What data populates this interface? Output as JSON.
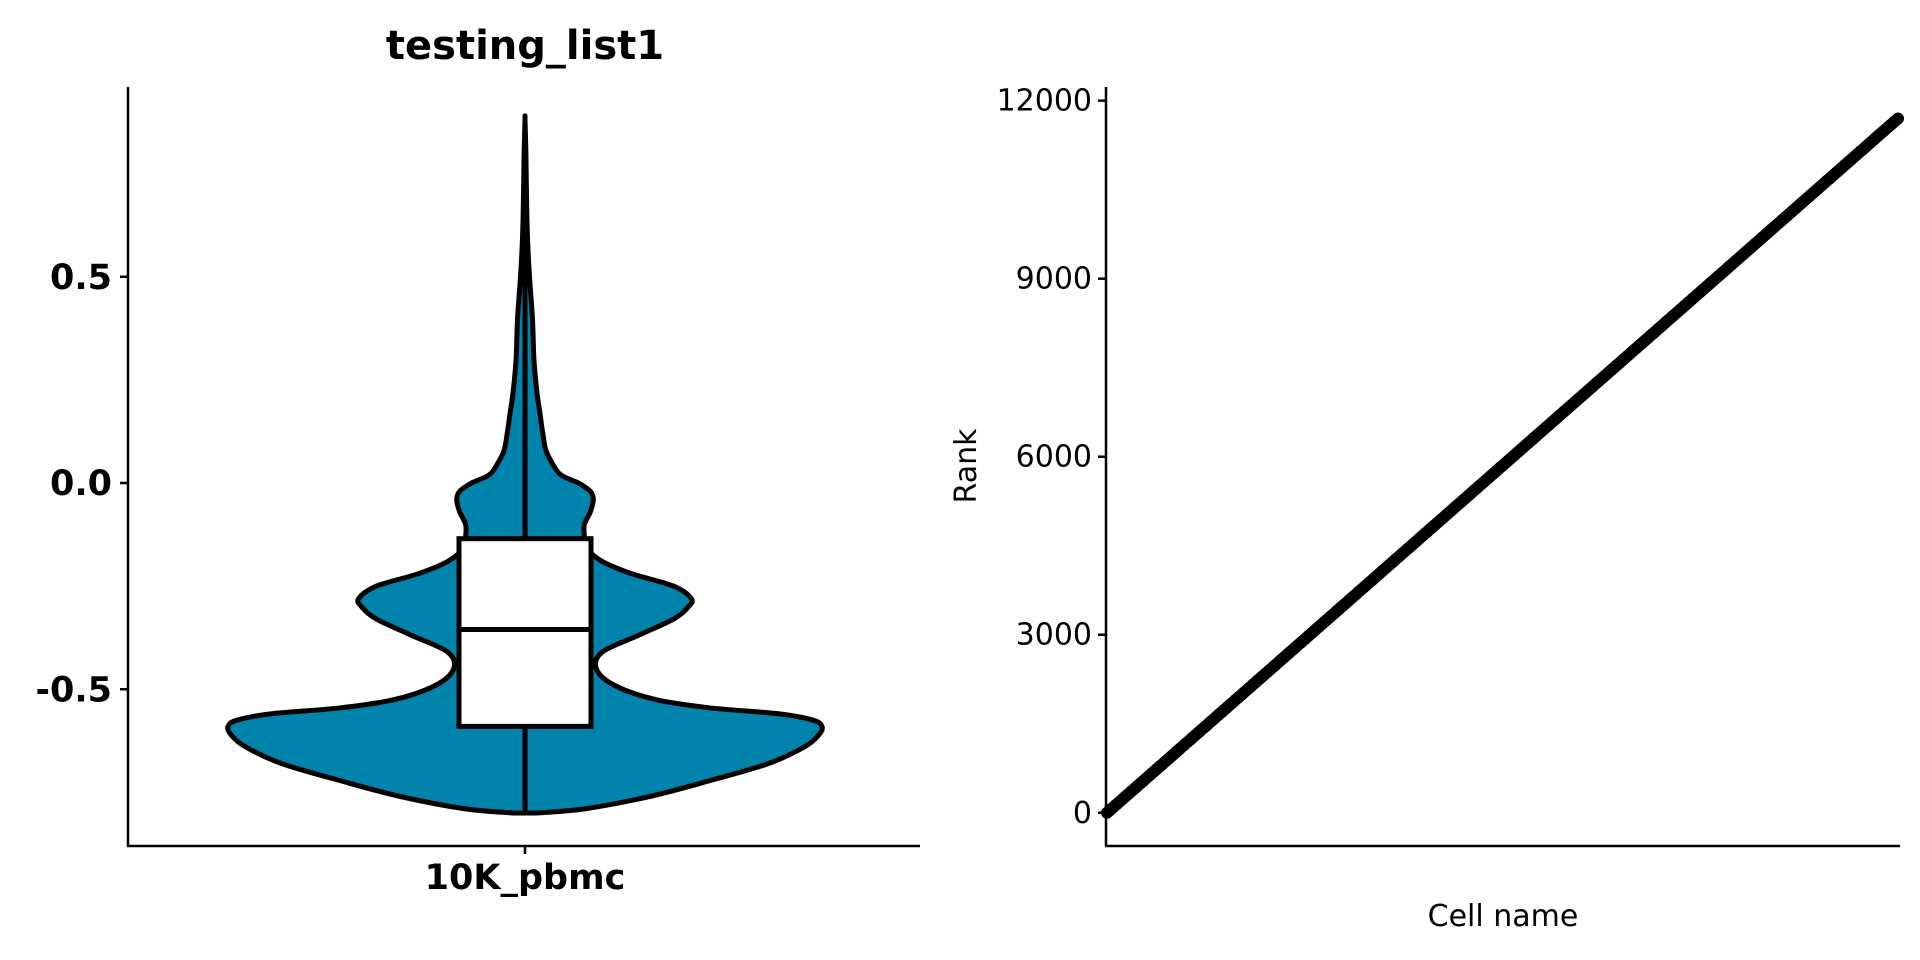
{
  "chart_data": [
    {
      "type": "violin",
      "title": "testing_list1",
      "xlabel": "",
      "ylabel": "",
      "categories": [
        "10K_pbmc"
      ],
      "yticks": [
        -0.5,
        0.0,
        0.5
      ],
      "ytick_labels": [
        "-0.5",
        "0.0",
        "0.5"
      ],
      "ylim": [
        -0.88,
        0.96
      ],
      "fill_color": "#0084AB",
      "outline_color": "#000000",
      "grid": false,
      "legend": "none",
      "violin_min": -0.8,
      "violin_max": 0.88,
      "density_profile": [
        [
          -0.8,
          0.04
        ],
        [
          -0.79,
          0.2
        ],
        [
          -0.76,
          0.42
        ],
        [
          -0.72,
          0.63
        ],
        [
          -0.68,
          0.82
        ],
        [
          -0.64,
          0.94
        ],
        [
          -0.61,
          0.99
        ],
        [
          -0.59,
          1.0
        ],
        [
          -0.575,
          0.97
        ],
        [
          -0.56,
          0.86
        ],
        [
          -0.545,
          0.62
        ],
        [
          -0.525,
          0.44
        ],
        [
          -0.49,
          0.3
        ],
        [
          -0.45,
          0.24
        ],
        [
          -0.41,
          0.26
        ],
        [
          -0.37,
          0.38
        ],
        [
          -0.33,
          0.5
        ],
        [
          -0.3,
          0.55
        ],
        [
          -0.28,
          0.56
        ],
        [
          -0.25,
          0.5
        ],
        [
          -0.22,
          0.36
        ],
        [
          -0.19,
          0.26
        ],
        [
          -0.16,
          0.21
        ],
        [
          -0.13,
          0.2
        ],
        [
          -0.1,
          0.2
        ],
        [
          -0.07,
          0.22
        ],
        [
          -0.04,
          0.23
        ],
        [
          -0.02,
          0.22
        ],
        [
          0.0,
          0.18
        ],
        [
          0.02,
          0.12
        ],
        [
          0.05,
          0.09
        ],
        [
          0.08,
          0.07
        ],
        [
          0.12,
          0.06
        ],
        [
          0.17,
          0.05
        ],
        [
          0.22,
          0.04
        ],
        [
          0.3,
          0.03
        ],
        [
          0.4,
          0.025
        ],
        [
          0.5,
          0.015
        ],
        [
          0.6,
          0.008
        ],
        [
          0.7,
          0.005
        ],
        [
          0.8,
          0.003
        ],
        [
          0.88,
          0.0
        ]
      ],
      "box": {
        "q1": -0.59,
        "median": -0.355,
        "q3": -0.135,
        "whisker_low": -0.8,
        "whisker_high": 0.88
      }
    },
    {
      "type": "scatter",
      "title": "",
      "xlabel": "Cell name",
      "ylabel": "Rank",
      "yticks": [
        0,
        3000,
        6000,
        9000,
        12000
      ],
      "ytick_labels": [
        "0",
        "3000",
        "6000",
        "9000",
        "12000"
      ],
      "ylim": [
        -560,
        12230
      ],
      "n_points": 11700,
      "y_start": 0,
      "y_end": 11700,
      "point_color": "#000000",
      "grid": false,
      "legend": "none"
    }
  ]
}
